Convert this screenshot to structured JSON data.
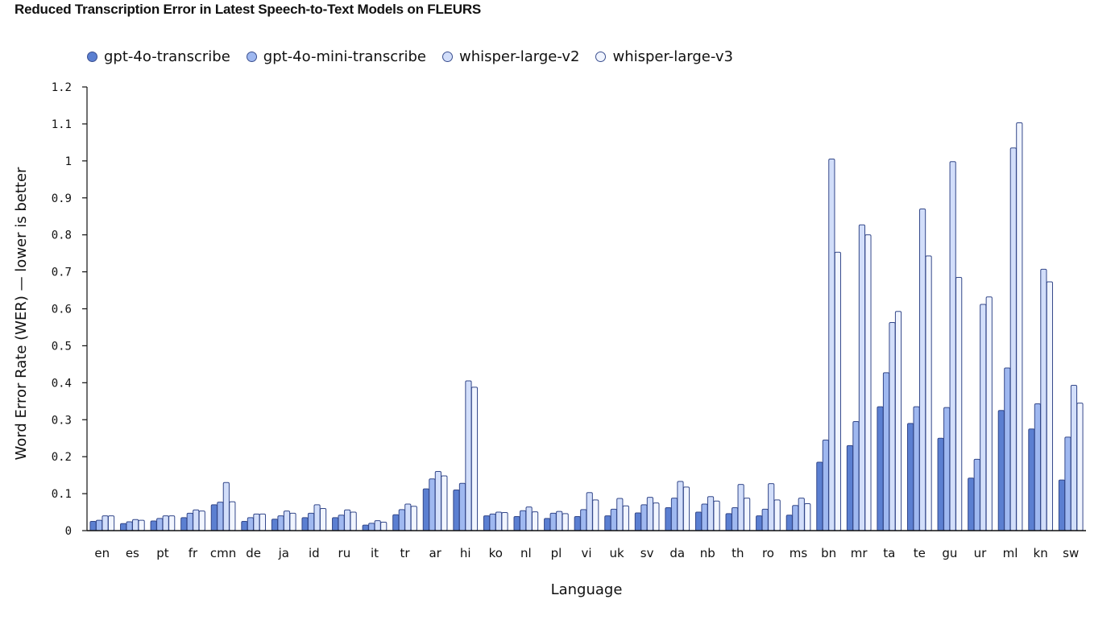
{
  "chart_data": {
    "type": "bar",
    "title": "Reduced Transcription Error in Latest Speech-to-Text Models on FLEURS",
    "xlabel": "Language",
    "ylabel": "Word Error Rate (WER) — lower is better",
    "ylim": [
      0,
      1.2
    ],
    "yticks": [
      "0",
      "0.1",
      "0.2",
      "0.3",
      "0.4",
      "0.5",
      "0.6",
      "0.7",
      "0.8",
      "0.9",
      "1",
      "1.1",
      "1.2"
    ],
    "grid": false,
    "legend_position": "top-left",
    "categories": [
      "en",
      "es",
      "pt",
      "fr",
      "cmn",
      "de",
      "ja",
      "id",
      "ru",
      "it",
      "tr",
      "ar",
      "hi",
      "ko",
      "nl",
      "pl",
      "vi",
      "uk",
      "sv",
      "da",
      "nb",
      "th",
      "ro",
      "ms",
      "bn",
      "mr",
      "ta",
      "te",
      "gu",
      "ur",
      "ml",
      "kn",
      "sw"
    ],
    "series": [
      {
        "name": "gpt-4o-transcribe",
        "color": "#5b7fd1",
        "values": [
          0.025,
          0.019,
          0.026,
          0.035,
          0.07,
          0.025,
          0.031,
          0.035,
          0.035,
          0.015,
          0.043,
          0.113,
          0.11,
          0.04,
          0.038,
          0.033,
          0.038,
          0.04,
          0.048,
          0.062,
          0.05,
          0.046,
          0.04,
          0.042,
          0.185,
          0.23,
          0.335,
          0.29,
          0.25,
          0.142,
          0.325,
          0.275,
          0.137
        ]
      },
      {
        "name": "gpt-4o-mini-transcribe",
        "color": "#9fb8f0",
        "values": [
          0.028,
          0.024,
          0.033,
          0.047,
          0.077,
          0.035,
          0.04,
          0.047,
          0.042,
          0.02,
          0.057,
          0.14,
          0.128,
          0.045,
          0.054,
          0.047,
          0.057,
          0.058,
          0.07,
          0.088,
          0.072,
          0.062,
          0.058,
          0.068,
          0.245,
          0.295,
          0.427,
          0.335,
          0.333,
          0.193,
          0.44,
          0.343,
          0.253
        ]
      },
      {
        "name": "whisper-large-v2",
        "color": "#d2defa",
        "values": [
          0.04,
          0.03,
          0.04,
          0.056,
          0.13,
          0.045,
          0.053,
          0.07,
          0.056,
          0.027,
          0.072,
          0.16,
          0.405,
          0.05,
          0.064,
          0.052,
          0.103,
          0.087,
          0.09,
          0.133,
          0.092,
          0.125,
          0.127,
          0.088,
          1.005,
          0.827,
          0.563,
          0.87,
          0.998,
          0.612,
          1.035,
          0.707,
          0.393
        ]
      },
      {
        "name": "whisper-large-v3",
        "color": "#f1f5ff",
        "values": [
          0.04,
          0.028,
          0.04,
          0.053,
          0.078,
          0.045,
          0.047,
          0.06,
          0.05,
          0.023,
          0.066,
          0.148,
          0.388,
          0.049,
          0.051,
          0.046,
          0.083,
          0.067,
          0.075,
          0.118,
          0.08,
          0.088,
          0.083,
          0.073,
          0.753,
          0.8,
          0.593,
          0.743,
          0.685,
          0.632,
          1.103,
          0.673,
          0.345
        ]
      }
    ]
  }
}
